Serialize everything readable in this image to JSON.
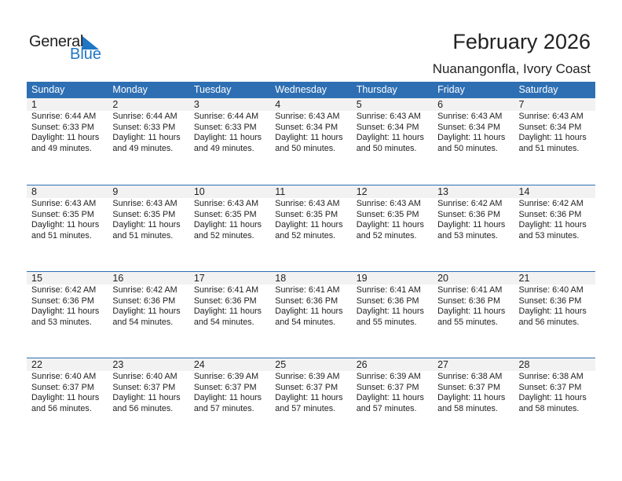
{
  "logo": {
    "word1": "General",
    "word2": "Blue",
    "accent": "#1f76c4"
  },
  "title": "February 2026",
  "location": "Nuanangonfla, Ivory Coast",
  "header_color": "#2e6fb3",
  "weekdays": [
    "Sunday",
    "Monday",
    "Tuesday",
    "Wednesday",
    "Thursday",
    "Friday",
    "Saturday"
  ],
  "days": [
    {
      "d": "1",
      "sunrise": "Sunrise: 6:44 AM",
      "sunset": "Sunset: 6:33 PM",
      "daylight1": "Daylight: 11 hours",
      "daylight2": "and 49 minutes."
    },
    {
      "d": "2",
      "sunrise": "Sunrise: 6:44 AM",
      "sunset": "Sunset: 6:33 PM",
      "daylight1": "Daylight: 11 hours",
      "daylight2": "and 49 minutes."
    },
    {
      "d": "3",
      "sunrise": "Sunrise: 6:44 AM",
      "sunset": "Sunset: 6:33 PM",
      "daylight1": "Daylight: 11 hours",
      "daylight2": "and 49 minutes."
    },
    {
      "d": "4",
      "sunrise": "Sunrise: 6:43 AM",
      "sunset": "Sunset: 6:34 PM",
      "daylight1": "Daylight: 11 hours",
      "daylight2": "and 50 minutes."
    },
    {
      "d": "5",
      "sunrise": "Sunrise: 6:43 AM",
      "sunset": "Sunset: 6:34 PM",
      "daylight1": "Daylight: 11 hours",
      "daylight2": "and 50 minutes."
    },
    {
      "d": "6",
      "sunrise": "Sunrise: 6:43 AM",
      "sunset": "Sunset: 6:34 PM",
      "daylight1": "Daylight: 11 hours",
      "daylight2": "and 50 minutes."
    },
    {
      "d": "7",
      "sunrise": "Sunrise: 6:43 AM",
      "sunset": "Sunset: 6:34 PM",
      "daylight1": "Daylight: 11 hours",
      "daylight2": "and 51 minutes."
    },
    {
      "d": "8",
      "sunrise": "Sunrise: 6:43 AM",
      "sunset": "Sunset: 6:35 PM",
      "daylight1": "Daylight: 11 hours",
      "daylight2": "and 51 minutes."
    },
    {
      "d": "9",
      "sunrise": "Sunrise: 6:43 AM",
      "sunset": "Sunset: 6:35 PM",
      "daylight1": "Daylight: 11 hours",
      "daylight2": "and 51 minutes."
    },
    {
      "d": "10",
      "sunrise": "Sunrise: 6:43 AM",
      "sunset": "Sunset: 6:35 PM",
      "daylight1": "Daylight: 11 hours",
      "daylight2": "and 52 minutes."
    },
    {
      "d": "11",
      "sunrise": "Sunrise: 6:43 AM",
      "sunset": "Sunset: 6:35 PM",
      "daylight1": "Daylight: 11 hours",
      "daylight2": "and 52 minutes."
    },
    {
      "d": "12",
      "sunrise": "Sunrise: 6:43 AM",
      "sunset": "Sunset: 6:35 PM",
      "daylight1": "Daylight: 11 hours",
      "daylight2": "and 52 minutes."
    },
    {
      "d": "13",
      "sunrise": "Sunrise: 6:42 AM",
      "sunset": "Sunset: 6:36 PM",
      "daylight1": "Daylight: 11 hours",
      "daylight2": "and 53 minutes."
    },
    {
      "d": "14",
      "sunrise": "Sunrise: 6:42 AM",
      "sunset": "Sunset: 6:36 PM",
      "daylight1": "Daylight: 11 hours",
      "daylight2": "and 53 minutes."
    },
    {
      "d": "15",
      "sunrise": "Sunrise: 6:42 AM",
      "sunset": "Sunset: 6:36 PM",
      "daylight1": "Daylight: 11 hours",
      "daylight2": "and 53 minutes."
    },
    {
      "d": "16",
      "sunrise": "Sunrise: 6:42 AM",
      "sunset": "Sunset: 6:36 PM",
      "daylight1": "Daylight: 11 hours",
      "daylight2": "and 54 minutes."
    },
    {
      "d": "17",
      "sunrise": "Sunrise: 6:41 AM",
      "sunset": "Sunset: 6:36 PM",
      "daylight1": "Daylight: 11 hours",
      "daylight2": "and 54 minutes."
    },
    {
      "d": "18",
      "sunrise": "Sunrise: 6:41 AM",
      "sunset": "Sunset: 6:36 PM",
      "daylight1": "Daylight: 11 hours",
      "daylight2": "and 54 minutes."
    },
    {
      "d": "19",
      "sunrise": "Sunrise: 6:41 AM",
      "sunset": "Sunset: 6:36 PM",
      "daylight1": "Daylight: 11 hours",
      "daylight2": "and 55 minutes."
    },
    {
      "d": "20",
      "sunrise": "Sunrise: 6:41 AM",
      "sunset": "Sunset: 6:36 PM",
      "daylight1": "Daylight: 11 hours",
      "daylight2": "and 55 minutes."
    },
    {
      "d": "21",
      "sunrise": "Sunrise: 6:40 AM",
      "sunset": "Sunset: 6:36 PM",
      "daylight1": "Daylight: 11 hours",
      "daylight2": "and 56 minutes."
    },
    {
      "d": "22",
      "sunrise": "Sunrise: 6:40 AM",
      "sunset": "Sunset: 6:37 PM",
      "daylight1": "Daylight: 11 hours",
      "daylight2": "and 56 minutes."
    },
    {
      "d": "23",
      "sunrise": "Sunrise: 6:40 AM",
      "sunset": "Sunset: 6:37 PM",
      "daylight1": "Daylight: 11 hours",
      "daylight2": "and 56 minutes."
    },
    {
      "d": "24",
      "sunrise": "Sunrise: 6:39 AM",
      "sunset": "Sunset: 6:37 PM",
      "daylight1": "Daylight: 11 hours",
      "daylight2": "and 57 minutes."
    },
    {
      "d": "25",
      "sunrise": "Sunrise: 6:39 AM",
      "sunset": "Sunset: 6:37 PM",
      "daylight1": "Daylight: 11 hours",
      "daylight2": "and 57 minutes."
    },
    {
      "d": "26",
      "sunrise": "Sunrise: 6:39 AM",
      "sunset": "Sunset: 6:37 PM",
      "daylight1": "Daylight: 11 hours",
      "daylight2": "and 57 minutes."
    },
    {
      "d": "27",
      "sunrise": "Sunrise: 6:38 AM",
      "sunset": "Sunset: 6:37 PM",
      "daylight1": "Daylight: 11 hours",
      "daylight2": "and 58 minutes."
    },
    {
      "d": "28",
      "sunrise": "Sunrise: 6:38 AM",
      "sunset": "Sunset: 6:37 PM",
      "daylight1": "Daylight: 11 hours",
      "daylight2": "and 58 minutes."
    }
  ]
}
